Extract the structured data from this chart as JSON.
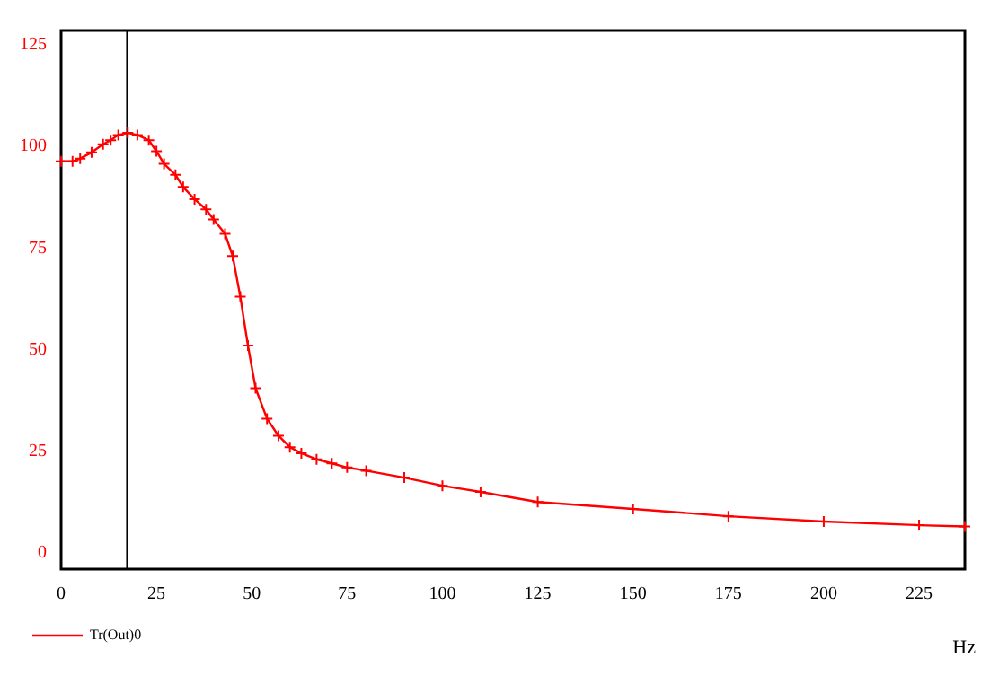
{
  "chart_data": {
    "type": "line",
    "xlabel": "Hz",
    "x": [
      0,
      3,
      5,
      8,
      11,
      13,
      15,
      17.5,
      20,
      23,
      25,
      27,
      30,
      32,
      35,
      38,
      40,
      43,
      45,
      47,
      49,
      51,
      54,
      57,
      60,
      63,
      67,
      71,
      75,
      80,
      90,
      100,
      110,
      125,
      150,
      175,
      200,
      225,
      237
    ],
    "series": [
      {
        "name": "Tr(Out)0",
        "color": "#ff0000",
        "values": [
          96.3,
          96.3,
          97,
          98.5,
          100.5,
          101.5,
          102.8,
          103.3,
          102.8,
          101.5,
          98.8,
          95.7,
          93,
          90,
          87,
          84.5,
          82,
          78.5,
          73,
          63,
          51,
          40.5,
          33,
          28.8,
          26,
          24.5,
          23,
          22,
          21,
          20.2,
          18.5,
          16.5,
          15,
          12.5,
          10.8,
          9,
          7.7,
          6.8,
          6.5
        ]
      }
    ],
    "xlim": [
      0,
      237
    ],
    "xticks": [
      0,
      25,
      50,
      75,
      100,
      125,
      150,
      175,
      200,
      225
    ],
    "ylim": [
      -4,
      128.5
    ],
    "yticks": [
      0,
      25,
      50,
      75,
      100,
      125
    ],
    "ref_lines": [
      {
        "axis": "x",
        "value": 17.3,
        "color": "#000000"
      }
    ],
    "grid": false,
    "legend": "bottom left",
    "marker": "cross",
    "line_style": "solid"
  }
}
